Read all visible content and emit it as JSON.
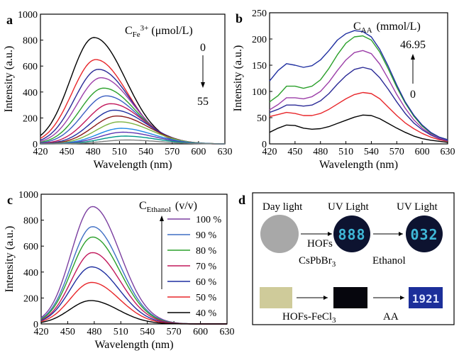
{
  "chart_data": [
    {
      "panel": "a",
      "type": "line",
      "xlabel": "Wavelength (nm)",
      "ylabel": "Intensity (a.u.)",
      "xlim": [
        420,
        630
      ],
      "ylim": [
        0,
        1000
      ],
      "xticks": [
        420,
        450,
        480,
        510,
        540,
        570,
        600,
        630
      ],
      "yticks": [
        0,
        200,
        400,
        600,
        800,
        1000
      ],
      "annotation": {
        "main": "C",
        "sub": "Fe",
        "sup": "3+",
        "unit": "(μmol/L)",
        "from": "0",
        "to": "55"
      },
      "series": [
        {
          "peak": 820,
          "center": 481,
          "color": "#000000"
        },
        {
          "peak": 650,
          "center": 483,
          "color": "#e8262a"
        },
        {
          "peak": 575,
          "center": 486,
          "color": "#2a2a96"
        },
        {
          "peak": 510,
          "center": 489,
          "color": "#9c3fa8"
        },
        {
          "peak": 430,
          "center": 492,
          "color": "#2ba02b"
        },
        {
          "peak": 370,
          "center": 495,
          "color": "#3b5fc2"
        },
        {
          "peak": 310,
          "center": 500,
          "color": "#c2185b"
        },
        {
          "peak": 260,
          "center": 504,
          "color": "#1f2fa0"
        },
        {
          "peak": 215,
          "center": 507,
          "color": "#8b1a1a"
        },
        {
          "peak": 170,
          "center": 510,
          "color": "#7cb342"
        },
        {
          "peak": 120,
          "center": 512,
          "color": "#1e88e5"
        },
        {
          "peak": 90,
          "center": 514,
          "color": "#5e35b1"
        },
        {
          "peak": 60,
          "center": 516,
          "color": "#009688"
        },
        {
          "peak": 30,
          "center": 518,
          "color": "#808080"
        }
      ]
    },
    {
      "panel": "b",
      "type": "line",
      "xlabel": "Wavelength (nm)",
      "ylabel": "Intensity (a.u.)",
      "xlim": [
        420,
        630
      ],
      "ylim": [
        0,
        250
      ],
      "xticks": [
        420,
        450,
        480,
        510,
        540,
        570,
        600,
        630
      ],
      "yticks": [
        0,
        50,
        100,
        150,
        200,
        250
      ],
      "annotation": {
        "main": "C",
        "sub": "AA",
        "unit": "(mmol/L)",
        "from": "46.95",
        "to": "0"
      },
      "series": [
        {
          "x": [
            420,
            430,
            440,
            450,
            460,
            470,
            480,
            490,
            500,
            510,
            520,
            530,
            540,
            550,
            560,
            570,
            580,
            590,
            600,
            610,
            620,
            630
          ],
          "y": [
            22,
            30,
            36,
            35,
            30,
            28,
            29,
            33,
            39,
            45,
            51,
            55,
            54,
            48,
            39,
            30,
            22,
            15,
            10,
            7,
            5,
            3
          ],
          "color": "#000000"
        },
        {
          "x": [
            420,
            430,
            440,
            450,
            460,
            470,
            480,
            490,
            500,
            510,
            520,
            530,
            540,
            550,
            560,
            570,
            580,
            590,
            600,
            610,
            620,
            630
          ],
          "y": [
            52,
            56,
            60,
            58,
            54,
            54,
            58,
            66,
            76,
            86,
            94,
            98,
            96,
            86,
            70,
            54,
            40,
            29,
            20,
            13,
            8,
            5
          ],
          "color": "#e8262a"
        },
        {
          "x": [
            420,
            430,
            440,
            450,
            460,
            470,
            480,
            490,
            500,
            510,
            520,
            530,
            540,
            550,
            560,
            570,
            580,
            590,
            600,
            610,
            620,
            630
          ],
          "y": [
            60,
            66,
            74,
            74,
            72,
            74,
            82,
            96,
            114,
            130,
            142,
            146,
            142,
            126,
            104,
            80,
            58,
            40,
            27,
            17,
            10,
            6
          ],
          "color": "#2a2a96"
        },
        {
          "x": [
            420,
            430,
            440,
            450,
            460,
            470,
            480,
            490,
            500,
            510,
            520,
            530,
            540,
            550,
            560,
            570,
            580,
            590,
            600,
            610,
            620,
            630
          ],
          "y": [
            65,
            75,
            88,
            88,
            86,
            90,
            100,
            118,
            140,
            160,
            174,
            178,
            172,
            152,
            124,
            94,
            68,
            46,
            30,
            19,
            11,
            7
          ],
          "color": "#9c3fa8"
        },
        {
          "x": [
            420,
            430,
            440,
            450,
            460,
            470,
            480,
            490,
            500,
            510,
            520,
            530,
            540,
            550,
            560,
            570,
            580,
            590,
            600,
            610,
            620,
            630
          ],
          "y": [
            80,
            92,
            110,
            110,
            106,
            110,
            122,
            144,
            170,
            192,
            204,
            206,
            198,
            175,
            143,
            108,
            78,
            53,
            34,
            21,
            13,
            8
          ],
          "color": "#2ba02b"
        },
        {
          "x": [
            420,
            430,
            440,
            450,
            460,
            470,
            480,
            490,
            500,
            510,
            520,
            530,
            540,
            550,
            560,
            570,
            580,
            590,
            600,
            610,
            620,
            630
          ],
          "y": [
            120,
            140,
            153,
            150,
            146,
            149,
            160,
            178,
            198,
            210,
            216,
            214,
            204,
            180,
            148,
            112,
            80,
            55,
            36,
            22,
            13,
            8
          ],
          "color": "#1f2fa0"
        }
      ]
    },
    {
      "panel": "c",
      "type": "line",
      "xlabel": "Wavelength (nm)",
      "ylabel": "Intensity (a.u.)",
      "xlim": [
        420,
        630
      ],
      "ylim": [
        0,
        1000
      ],
      "xticks": [
        420,
        450,
        480,
        510,
        540,
        570,
        600,
        630
      ],
      "yticks": [
        0,
        200,
        400,
        600,
        800,
        1000
      ],
      "legend_title": {
        "main": "C",
        "sub": "Ethanol",
        "unit": "(v/v)"
      },
      "legend": "right",
      "series": [
        {
          "name": "100 %",
          "peak": 905,
          "center": 478,
          "color": "#7b3fa0"
        },
        {
          "name": "90 %",
          "peak": 750,
          "center": 478,
          "color": "#3f6fc4"
        },
        {
          "name": "80 %",
          "peak": 670,
          "center": 478,
          "color": "#2ba02b"
        },
        {
          "name": "70 %",
          "peak": 550,
          "center": 478,
          "color": "#c2185b"
        },
        {
          "name": "60 %",
          "peak": 440,
          "center": 477,
          "color": "#1f2fa0"
        },
        {
          "name": "50 %",
          "peak": 320,
          "center": 477,
          "color": "#e8262a"
        },
        {
          "name": "40 %",
          "peak": 180,
          "center": 476,
          "color": "#000000"
        }
      ]
    }
  ],
  "panel_d": {
    "letter": "d",
    "day_light": "Day light",
    "uv_light_1": "UV Light",
    "uv_light_2": "UV Light",
    "hofs": "HOFs",
    "cspbbr3_main": "CsPbBr",
    "cspbbr3_sub": "3",
    "ethanol": "Ethanol",
    "hofs_fecl3_main": "HOFs-FeCl",
    "hofs_fecl3_sub": "3",
    "aa": "AA",
    "display_1": "888",
    "display_2": "032",
    "display_3": "1921",
    "colors": {
      "gray": "#a8a8a8",
      "panel_bg": "#ffffff",
      "uv_bg": "#0d1330",
      "digit": "#3fb8d8",
      "tan": "#cfcb9a",
      "dark": "#06060d",
      "blue_panel": "#1c2f9a"
    }
  },
  "panel_letters": [
    "a",
    "b",
    "c"
  ]
}
